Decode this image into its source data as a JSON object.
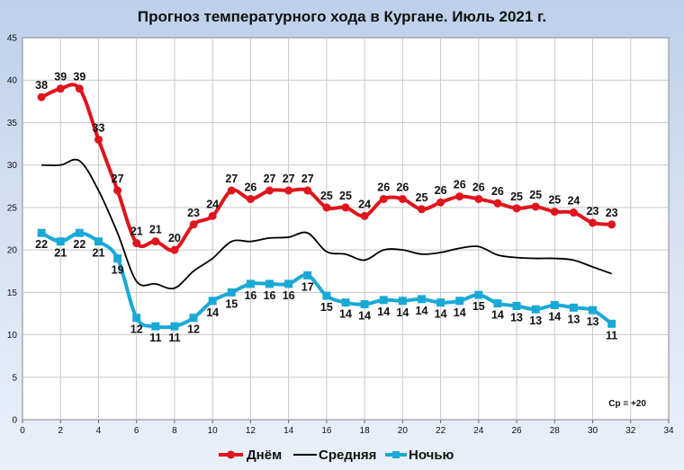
{
  "chart_data": {
    "type": "line",
    "title": "Прогноз температурного хода в Кургане. Июль 2021 г.",
    "xlim": [
      0,
      34
    ],
    "ylim": [
      0,
      45
    ],
    "x_ticks": [
      0,
      2,
      4,
      6,
      8,
      10,
      12,
      14,
      16,
      18,
      20,
      22,
      24,
      26,
      28,
      30,
      32,
      34
    ],
    "y_ticks": [
      0,
      5,
      10,
      15,
      20,
      25,
      30,
      35,
      40,
      45
    ],
    "grid": true,
    "legend_position": "bottom",
    "annotation": "Ср = +20",
    "series": [
      {
        "name": "Днём",
        "color": "#e0141c",
        "marker": "circle",
        "x": [
          1,
          2,
          3,
          4,
          5,
          6,
          7,
          8,
          9,
          10,
          11,
          12,
          13,
          14,
          15,
          16,
          17,
          18,
          19,
          20,
          21,
          22,
          23,
          24,
          25,
          26,
          27,
          28,
          29,
          30,
          31
        ],
        "values": [
          38,
          39,
          39,
          33,
          27,
          20.8,
          21,
          20,
          23,
          24,
          27,
          26,
          27,
          27,
          27,
          25,
          25,
          24,
          26,
          26,
          24.8,
          25.6,
          26.3,
          26,
          25.5,
          24.9,
          25.1,
          24.5,
          24.4,
          23.2,
          23
        ],
        "labels": [
          "38",
          "39",
          "39",
          "33",
          "27",
          "21",
          "21",
          "20",
          "23",
          "24",
          "27",
          "26",
          "27",
          "27",
          "27",
          "25",
          "25",
          "24",
          "26",
          "26",
          "25",
          "26",
          "26",
          "26",
          "26",
          "25",
          "25",
          "25",
          "24",
          "23",
          "23"
        ]
      },
      {
        "name": "Средняя",
        "color": "#000000",
        "marker": "none",
        "x": [
          1,
          2,
          3,
          4,
          5,
          6,
          7,
          8,
          9,
          10,
          11,
          12,
          13,
          14,
          15,
          16,
          17,
          18,
          19,
          20,
          21,
          22,
          23,
          24,
          25,
          26,
          27,
          28,
          29,
          30,
          31
        ],
        "values": [
          30,
          30,
          30.5,
          27,
          22,
          16.3,
          16,
          15.5,
          17.5,
          19,
          21,
          21,
          21.4,
          21.5,
          22,
          19.8,
          19.5,
          18.8,
          20,
          20,
          19.5,
          19.7,
          20.2,
          20.4,
          19.4,
          19.1,
          19,
          19,
          18.8,
          18,
          17.2
        ]
      },
      {
        "name": "Ночью",
        "color": "#1aa9d6",
        "marker": "square",
        "x": [
          1,
          2,
          3,
          4,
          5,
          6,
          7,
          8,
          9,
          10,
          11,
          12,
          13,
          14,
          15,
          16,
          17,
          18,
          19,
          20,
          21,
          22,
          23,
          24,
          25,
          26,
          27,
          28,
          29,
          30,
          31
        ],
        "values": [
          22,
          21,
          22,
          21,
          19,
          12,
          11,
          11,
          12,
          14,
          15,
          16,
          16,
          16,
          17,
          14.6,
          13.8,
          13.6,
          14.1,
          14,
          14.2,
          13.8,
          14,
          14.7,
          13.7,
          13.4,
          13,
          13.5,
          13.2,
          12.9,
          11.3
        ],
        "labels": [
          "22",
          "21",
          "22",
          "21",
          "19",
          "12",
          "11",
          "11",
          "12",
          "14",
          "15",
          "16",
          "16",
          "16",
          "17",
          "15",
          "14",
          "14",
          "14",
          "14",
          "14",
          "14",
          "14",
          "15",
          "14",
          "13",
          "13",
          "14",
          "13",
          "13",
          "11"
        ]
      }
    ]
  }
}
